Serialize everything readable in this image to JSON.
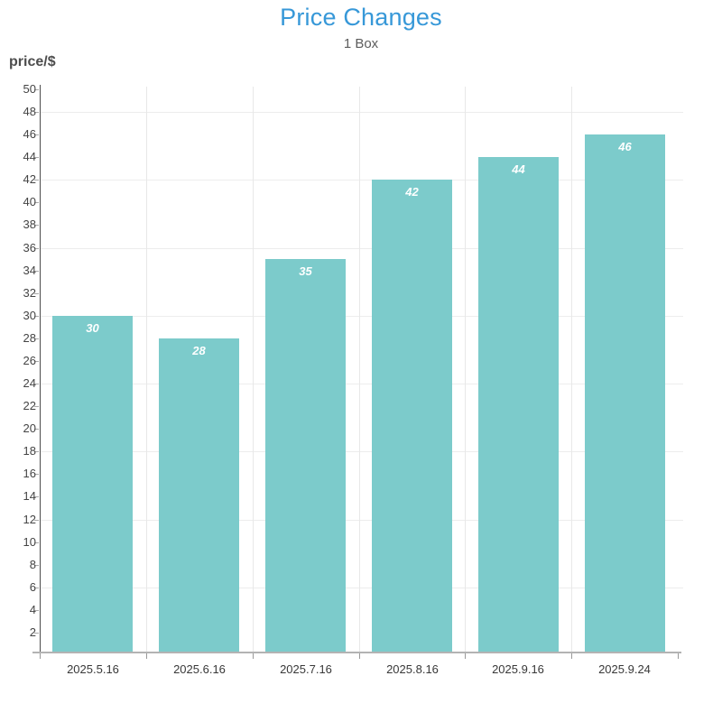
{
  "title": {
    "text": "Price Changes",
    "color": "#3798d8"
  },
  "subtitle": {
    "text": "1 Box"
  },
  "y_axis_title": "price/$",
  "chart_data": {
    "type": "bar",
    "title": "Price Changes",
    "subtitle": "1 Box",
    "xlabel": "",
    "ylabel": "price/$",
    "categories": [
      "2025.5.16",
      "2025.6.16",
      "2025.7.16",
      "2025.8.16",
      "2025.9.16",
      "2025.9.24"
    ],
    "values": [
      30,
      28,
      35,
      42,
      44,
      46
    ],
    "ylim": [
      0,
      50
    ],
    "y_tick_step": 2,
    "h_gridline_step": 6,
    "grid": true,
    "legend_position": "none",
    "bar_color": "#7ccbcb",
    "value_label_color": "#ffffff",
    "title_color": "#3798d8"
  }
}
